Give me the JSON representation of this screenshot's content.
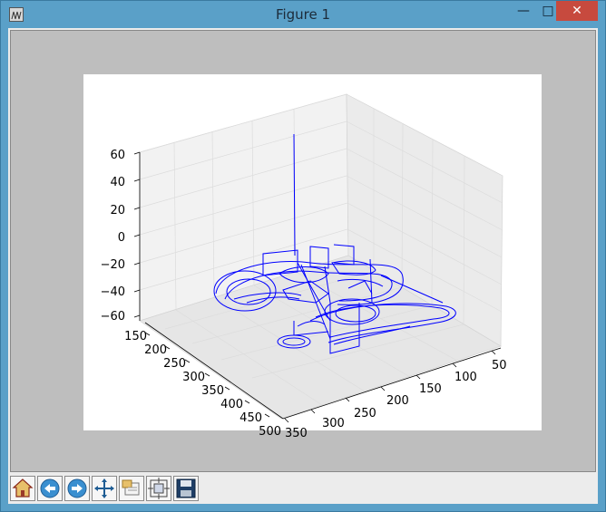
{
  "window": {
    "title": "Figure 1",
    "minimize_icon": "minimize-icon",
    "maximize_icon": "maximize-icon",
    "close_icon": "close-icon",
    "app_icon": "matplotlib-figure-icon"
  },
  "plot": {
    "z_ticks": [
      "60",
      "40",
      "20",
      "0",
      "−20",
      "−40",
      "−60"
    ],
    "y_ticks": [
      "150",
      "200",
      "250",
      "300",
      "350",
      "400",
      "450",
      "500"
    ],
    "x_ticks": [
      "50",
      "100",
      "150",
      "200",
      "250",
      "300",
      "350"
    ],
    "line_color": "#0000ff"
  },
  "toolbar": {
    "buttons": [
      {
        "name": "home-button",
        "icon": "home-icon"
      },
      {
        "name": "back-button",
        "icon": "back-arrow-icon"
      },
      {
        "name": "forward-button",
        "icon": "forward-arrow-icon"
      },
      {
        "name": "pan-button",
        "icon": "pan-move-icon"
      },
      {
        "name": "zoom-button",
        "icon": "zoom-rect-icon"
      },
      {
        "name": "configure-subplots-button",
        "icon": "subplots-icon"
      },
      {
        "name": "save-button",
        "icon": "save-disk-icon"
      }
    ]
  }
}
